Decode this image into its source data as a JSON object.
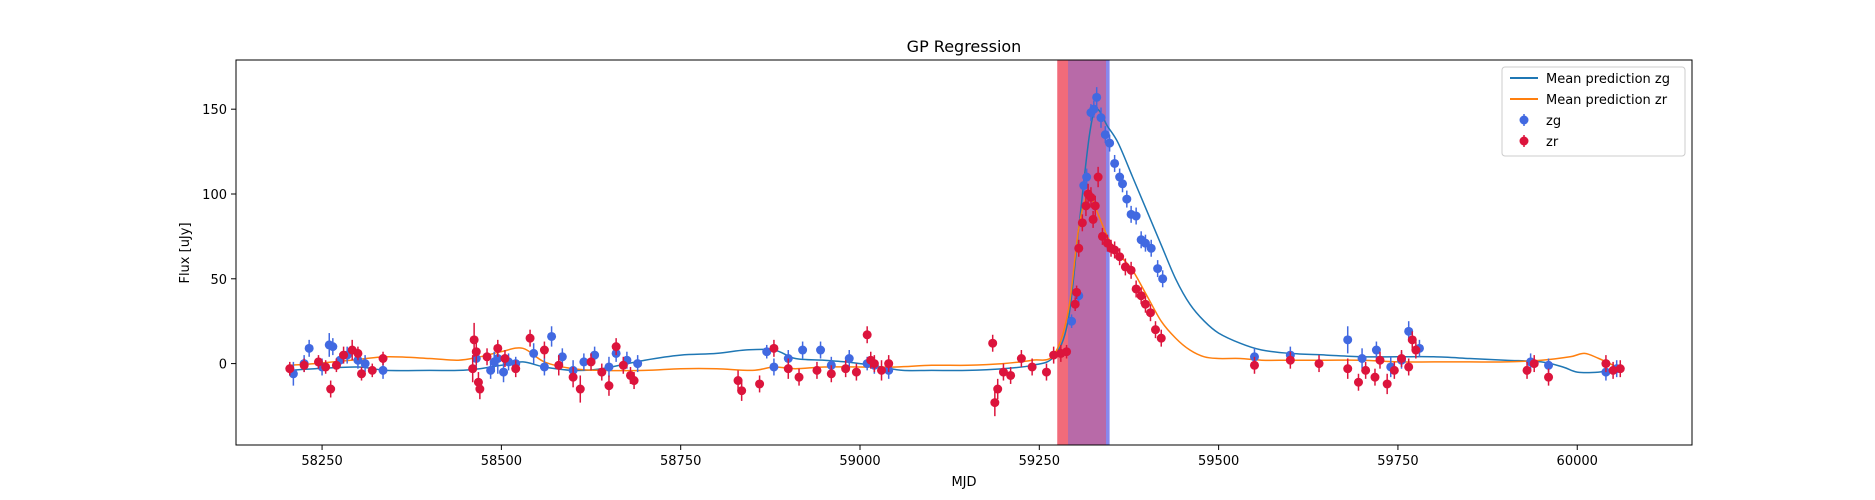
{
  "chart_data": {
    "type": "scatter",
    "title": "GP Regression",
    "xlabel": "MJD",
    "ylabel": "Flux [uJy]",
    "xlim": [
      58130,
      60160
    ],
    "ylim": [
      -48,
      179
    ],
    "xticks": [
      58250,
      58500,
      58750,
      59000,
      59250,
      59500,
      59750,
      60000
    ],
    "yticks": [
      0,
      50,
      100,
      150
    ],
    "grid": false,
    "legend_position": "top-right",
    "shaded_regions": [
      {
        "color": "#f26b7a",
        "x0": 59275,
        "x1": 59343
      },
      {
        "color": "#8888ee",
        "x0": 59290,
        "x1": 59348
      },
      {
        "color": "#b86aa8",
        "x0": 59290,
        "x1": 59343
      }
    ],
    "lines": [
      {
        "name": "Mean prediction zg",
        "color": "#1f77b4",
        "x": [
          58205,
          58240,
          58300,
          58340,
          58400,
          58440,
          58470,
          58500,
          58530,
          58560,
          58600,
          58640,
          58700,
          58750,
          58800,
          58840,
          58880,
          58910,
          58950,
          58980,
          59000,
          59030,
          59060,
          59100,
          59150,
          59200,
          59240,
          59270,
          59290,
          59305,
          59320,
          59330,
          59345,
          59360,
          59380,
          59400,
          59420,
          59440,
          59460,
          59480,
          59500,
          59530,
          59560,
          59600,
          59650,
          59700,
          59750,
          59800,
          59850,
          59900,
          59950,
          59980,
          60000,
          60030,
          60060
        ],
        "y": [
          -4,
          -3,
          -2,
          -4,
          -4,
          -4,
          -3,
          -1,
          1,
          -2,
          -4,
          -3,
          2,
          5,
          6,
          8,
          8,
          3,
          2,
          1,
          0,
          -2,
          -4,
          -4,
          -4,
          -3,
          -1,
          4,
          25,
          80,
          135,
          150,
          140,
          130,
          110,
          90,
          70,
          50,
          35,
          25,
          18,
          12,
          8,
          6,
          5,
          4,
          4,
          4,
          3,
          2,
          1,
          -2,
          -5,
          -5,
          -3
        ]
      },
      {
        "name": "Mean prediction zr",
        "color": "#ff7f0e",
        "x": [
          58205,
          58240,
          58290,
          58340,
          58400,
          58440,
          58470,
          58500,
          58530,
          58560,
          58600,
          58640,
          58700,
          58750,
          58800,
          58850,
          58880,
          58910,
          58950,
          59000,
          59050,
          59100,
          59150,
          59200,
          59240,
          59270,
          59290,
          59305,
          59318,
          59330,
          59345,
          59360,
          59380,
          59400,
          59420,
          59440,
          59460,
          59480,
          59500,
          59530,
          59560,
          59600,
          59650,
          59700,
          59750,
          59800,
          59850,
          59900,
          59950,
          59990,
          60010,
          60030,
          60060
        ],
        "y": [
          -1,
          0,
          2,
          4,
          3,
          2,
          4,
          7,
          9,
          1,
          -3,
          -4,
          -4,
          -3,
          -3,
          -4,
          -2,
          -3,
          -2,
          -2,
          -2,
          -1,
          -1,
          0,
          2,
          5,
          30,
          80,
          100,
          90,
          75,
          65,
          55,
          40,
          25,
          15,
          8,
          4,
          3,
          3,
          2,
          2,
          2,
          2,
          1,
          1,
          1,
          1,
          2,
          4,
          6,
          3,
          -3
        ]
      }
    ],
    "series": [
      {
        "name": "zg",
        "color": "#4169e1",
        "points": [
          [
            58210,
            -6,
            7
          ],
          [
            58225,
            0,
            5
          ],
          [
            58232,
            9,
            5
          ],
          [
            58250,
            -2,
            5
          ],
          [
            58260,
            11,
            7
          ],
          [
            58265,
            10,
            5
          ],
          [
            58275,
            2,
            4
          ],
          [
            58285,
            5,
            5
          ],
          [
            58300,
            2,
            5
          ],
          [
            58310,
            0,
            5
          ],
          [
            58335,
            -4,
            5
          ],
          [
            58465,
            3,
            6
          ],
          [
            58485,
            -4,
            5
          ],
          [
            58490,
            1,
            6
          ],
          [
            58495,
            3,
            9
          ],
          [
            58503,
            -5,
            6
          ],
          [
            58510,
            1,
            5
          ],
          [
            58520,
            0,
            4
          ],
          [
            58545,
            6,
            6
          ],
          [
            58560,
            -2,
            5
          ],
          [
            58570,
            16,
            6
          ],
          [
            58585,
            4,
            5
          ],
          [
            58600,
            -4,
            6
          ],
          [
            58615,
            1,
            5
          ],
          [
            58630,
            5,
            5
          ],
          [
            58650,
            -2,
            6
          ],
          [
            58660,
            6,
            5
          ],
          [
            58675,
            2,
            5
          ],
          [
            58690,
            0,
            5
          ],
          [
            58870,
            7,
            4
          ],
          [
            58880,
            -2,
            5
          ],
          [
            58900,
            3,
            5
          ],
          [
            58920,
            8,
            5
          ],
          [
            58945,
            8,
            5
          ],
          [
            58960,
            -1,
            5
          ],
          [
            58985,
            3,
            5
          ],
          [
            59010,
            0,
            4
          ],
          [
            59020,
            -1,
            5
          ],
          [
            59040,
            -4,
            5
          ],
          [
            59295,
            25,
            4
          ],
          [
            59305,
            40,
            4
          ],
          [
            59312,
            105,
            5
          ],
          [
            59316,
            110,
            5
          ],
          [
            59322,
            148,
            5
          ],
          [
            59326,
            150,
            5
          ],
          [
            59330,
            157,
            6
          ],
          [
            59336,
            145,
            6
          ],
          [
            59342,
            135,
            5
          ],
          [
            59348,
            130,
            5
          ],
          [
            59355,
            118,
            5
          ],
          [
            59362,
            110,
            5
          ],
          [
            59366,
            106,
            5
          ],
          [
            59372,
            97,
            5
          ],
          [
            59378,
            88,
            5
          ],
          [
            59385,
            87,
            5
          ],
          [
            59392,
            73,
            5
          ],
          [
            59398,
            71,
            5
          ],
          [
            59406,
            68,
            5
          ],
          [
            59415,
            56,
            5
          ],
          [
            59422,
            50,
            5
          ],
          [
            59550,
            4,
            5
          ],
          [
            59600,
            5,
            5
          ],
          [
            59680,
            14,
            8
          ],
          [
            59700,
            3,
            6
          ],
          [
            59720,
            8,
            5
          ],
          [
            59740,
            -2,
            6
          ],
          [
            59755,
            2,
            5
          ],
          [
            59765,
            19,
            6
          ],
          [
            59780,
            9,
            5
          ],
          [
            59935,
            1,
            5
          ],
          [
            59960,
            -1,
            4
          ],
          [
            60040,
            -5,
            5
          ],
          [
            60055,
            -3,
            5
          ]
        ]
      },
      {
        "name": "zr",
        "color": "#dc143c",
        "points": [
          [
            58205,
            -3,
            4
          ],
          [
            58225,
            -1,
            4
          ],
          [
            58245,
            1,
            4
          ],
          [
            58255,
            -2,
            4
          ],
          [
            58262,
            -15,
            5
          ],
          [
            58270,
            -1,
            4
          ],
          [
            58280,
            5,
            5
          ],
          [
            58292,
            8,
            6
          ],
          [
            58300,
            6,
            4
          ],
          [
            58305,
            -6,
            4
          ],
          [
            58320,
            -4,
            4
          ],
          [
            58335,
            3,
            4
          ],
          [
            58460,
            -3,
            8
          ],
          [
            58462,
            14,
            10
          ],
          [
            58465,
            7,
            8
          ],
          [
            58468,
            -11,
            6
          ],
          [
            58470,
            -15,
            6
          ],
          [
            58480,
            4,
            5
          ],
          [
            58495,
            9,
            5
          ],
          [
            58505,
            3,
            5
          ],
          [
            58520,
            -3,
            5
          ],
          [
            58540,
            15,
            5
          ],
          [
            58560,
            8,
            5
          ],
          [
            58580,
            -1,
            6
          ],
          [
            58600,
            -8,
            6
          ],
          [
            58610,
            -15,
            8
          ],
          [
            58625,
            1,
            5
          ],
          [
            58640,
            -5,
            5
          ],
          [
            58650,
            -13,
            6
          ],
          [
            58660,
            10,
            5
          ],
          [
            58670,
            -1,
            5
          ],
          [
            58680,
            -7,
            5
          ],
          [
            58685,
            -10,
            5
          ],
          [
            58830,
            -10,
            6
          ],
          [
            58835,
            -16,
            6
          ],
          [
            58860,
            -12,
            5
          ],
          [
            58880,
            9,
            5
          ],
          [
            58900,
            -3,
            6
          ],
          [
            58915,
            -8,
            5
          ],
          [
            58940,
            -4,
            5
          ],
          [
            58960,
            -6,
            5
          ],
          [
            58980,
            -3,
            5
          ],
          [
            58995,
            -5,
            5
          ],
          [
            59010,
            17,
            5
          ],
          [
            59015,
            2,
            5
          ],
          [
            59020,
            0,
            5
          ],
          [
            59030,
            -4,
            6
          ],
          [
            59040,
            0,
            5
          ],
          [
            59185,
            12,
            5
          ],
          [
            59188,
            -23,
            8
          ],
          [
            59192,
            -15,
            6
          ],
          [
            59200,
            -5,
            5
          ],
          [
            59210,
            -7,
            5
          ],
          [
            59225,
            3,
            5
          ],
          [
            59240,
            -2,
            5
          ],
          [
            59260,
            -5,
            5
          ],
          [
            59270,
            5,
            5
          ],
          [
            59280,
            6,
            5
          ],
          [
            59288,
            7,
            4
          ],
          [
            59300,
            35,
            4
          ],
          [
            59302,
            42,
            4
          ],
          [
            59305,
            68,
            5
          ],
          [
            59310,
            83,
            5
          ],
          [
            59315,
            93,
            6
          ],
          [
            59318,
            100,
            6
          ],
          [
            59322,
            98,
            6
          ],
          [
            59325,
            85,
            5
          ],
          [
            59328,
            93,
            6
          ],
          [
            59332,
            110,
            6
          ],
          [
            59338,
            75,
            5
          ],
          [
            59345,
            71,
            5
          ],
          [
            59350,
            68,
            5
          ],
          [
            59355,
            67,
            5
          ],
          [
            59362,
            63,
            5
          ],
          [
            59370,
            57,
            5
          ],
          [
            59378,
            55,
            5
          ],
          [
            59385,
            44,
            5
          ],
          [
            59392,
            40,
            5
          ],
          [
            59398,
            35,
            5
          ],
          [
            59405,
            30,
            5
          ],
          [
            59412,
            20,
            5
          ],
          [
            59420,
            15,
            5
          ],
          [
            59550,
            -1,
            5
          ],
          [
            59600,
            2,
            5
          ],
          [
            59640,
            0,
            5
          ],
          [
            59680,
            -3,
            6
          ],
          [
            59695,
            -11,
            5
          ],
          [
            59705,
            -4,
            5
          ],
          [
            59718,
            -8,
            5
          ],
          [
            59725,
            2,
            5
          ],
          [
            59735,
            -12,
            6
          ],
          [
            59745,
            -4,
            5
          ],
          [
            59755,
            3,
            5
          ],
          [
            59765,
            -2,
            5
          ],
          [
            59770,
            14,
            5
          ],
          [
            59775,
            8,
            5
          ],
          [
            59930,
            -4,
            5
          ],
          [
            59940,
            0,
            5
          ],
          [
            59960,
            -8,
            5
          ],
          [
            60040,
            0,
            5
          ],
          [
            60050,
            -4,
            5
          ],
          [
            60060,
            -3,
            5
          ]
        ]
      }
    ]
  }
}
